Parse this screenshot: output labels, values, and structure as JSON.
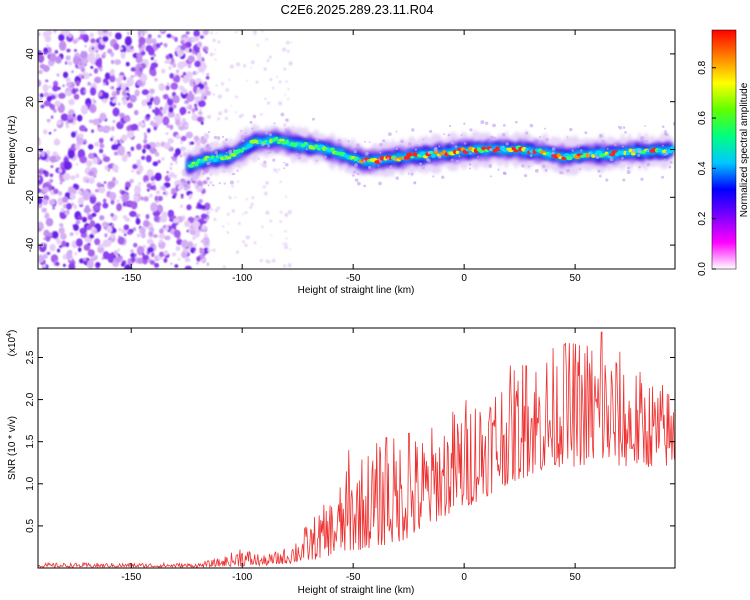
{
  "title": "C2E6.2025.289.23.11.R04",
  "chart_data": [
    {
      "type": "heatmap",
      "panel": "spectrogram",
      "xlabel": "Height of straight line (km)",
      "ylabel": "Frequency (Hz)",
      "xlim": [
        -192,
        95
      ],
      "ylim": [
        -50,
        50
      ],
      "xticks": [
        -150,
        -100,
        -50,
        0,
        50
      ],
      "yticks": [
        -40,
        -20,
        0,
        20,
        40
      ],
      "noise_region_x": [
        -192,
        -118
      ],
      "ridge": {
        "x": [
          -125,
          -115,
          -105,
          -95,
          -85,
          -75,
          -65,
          -55,
          -45,
          -35,
          -25,
          -15,
          -5,
          5,
          15,
          25,
          35,
          45,
          55,
          65,
          75,
          85,
          95
        ],
        "freq": [
          -7,
          -4,
          -3,
          3,
          4,
          2,
          1,
          -2,
          -5,
          -4,
          -3,
          -2,
          -1,
          0,
          0,
          0,
          -1,
          -3,
          -2,
          -2,
          -1,
          -1,
          0
        ]
      },
      "colorbar": {
        "label": "Normalized spectral amplitude",
        "range": [
          0.0,
          0.95
        ],
        "ticks": [
          "0.0",
          "0.2",
          "0.4",
          "0.6",
          "0.8"
        ],
        "colors": [
          "#ffffff",
          "#ff00ff",
          "#7b00ff",
          "#0000ff",
          "#00c8ff",
          "#00ff80",
          "#60ff00",
          "#ffff00",
          "#ff8000",
          "#ff0000"
        ]
      }
    },
    {
      "type": "line",
      "panel": "snr",
      "xlabel": "Height of straight line (km)",
      "ylabel": "SNR (10 * v/v)",
      "scale_label": "(x10",
      "scale_exp": "4",
      "scale_close": ")",
      "xlim": [
        -192,
        95
      ],
      "ylim": [
        0,
        2.85
      ],
      "xticks": [
        -150,
        -100,
        -50,
        0,
        50
      ],
      "yticks": [
        "0.5",
        "1.0",
        "1.5",
        "2.0",
        "2.5"
      ],
      "series": [
        {
          "name": "SNR",
          "color": "#ee3030",
          "envelope_x": [
            -192,
            -120,
            -110,
            -100,
            -90,
            -80,
            -70,
            -60,
            -50,
            -40,
            -30,
            -20,
            -10,
            0,
            10,
            20,
            30,
            40,
            50,
            60,
            70,
            80,
            95
          ],
          "envelope_low": [
            0.01,
            0.01,
            0.02,
            0.02,
            0.03,
            0.05,
            0.08,
            0.15,
            0.2,
            0.25,
            0.3,
            0.4,
            0.6,
            0.7,
            0.85,
            1.0,
            1.1,
            1.2,
            1.2,
            1.25,
            1.2,
            1.2,
            1.2
          ],
          "envelope_high": [
            0.06,
            0.06,
            0.12,
            0.25,
            0.15,
            0.25,
            0.55,
            0.85,
            1.3,
            1.5,
            1.6,
            1.6,
            1.8,
            2.05,
            2.25,
            2.4,
            2.6,
            2.65,
            2.75,
            2.8,
            2.6,
            2.35,
            2.15
          ],
          "peaks": [
            {
              "x": -101,
              "y": 0.22
            },
            {
              "x": -52,
              "y": 1.4
            },
            {
              "x": -35,
              "y": 1.55
            },
            {
              "x": -25,
              "y": 1.6
            },
            {
              "x": 28,
              "y": 2.4
            },
            {
              "x": 45,
              "y": 2.65
            },
            {
              "x": 62,
              "y": 2.8
            }
          ]
        }
      ]
    }
  ]
}
